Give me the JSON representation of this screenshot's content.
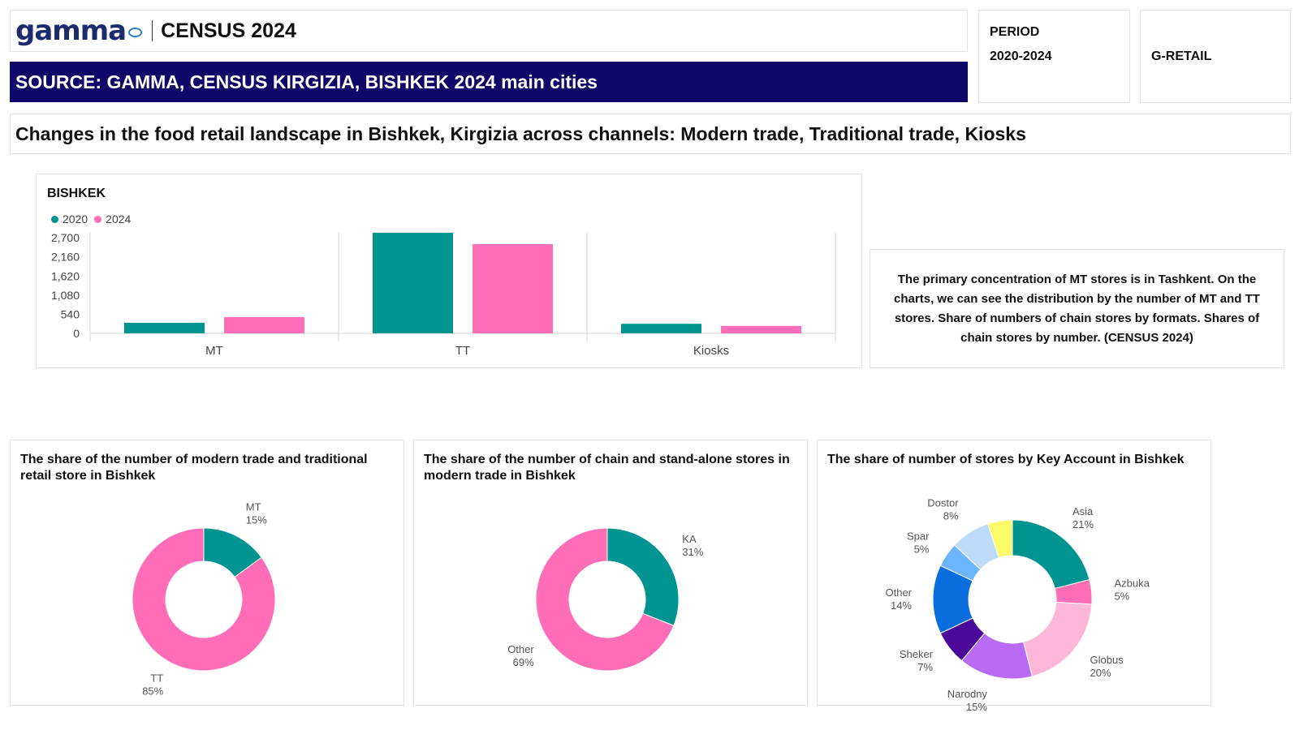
{
  "header": {
    "logo_text": "gamma",
    "title": "CENSUS 2024",
    "source": "SOURCE: GAMMA, CENSUS KIRGIZIA, BISHKEK 2024 main cities",
    "period_label": "PERIOD",
    "period_value": "2020-2024",
    "segment": "G-RETAIL"
  },
  "subtitle": "Changes in the food retail landscape in Bishkek, Kirgizia across channels: Modern trade, Traditional trade, Kiosks",
  "note": "The primary concentration of MT stores is in Tashkent. On the charts, we can see the distribution by the number of MT and TT stores. Share of numbers of chain stores by formats. Shares of chain stores by  number.  (CENSUS 2024)",
  "colors": {
    "teal": "#009490",
    "pink": "#ff6db6",
    "navy": "#0f0868"
  },
  "chart_data": [
    {
      "type": "bar",
      "title": "BISHKEK",
      "categories": [
        "MT",
        "TT",
        "Kiosks"
      ],
      "series": [
        {
          "name": "2020",
          "color": "#009490",
          "values": [
            300,
            2840,
            270
          ]
        },
        {
          "name": "2024",
          "color": "#ff6db6",
          "values": [
            460,
            2520,
            210
          ]
        }
      ],
      "yticks": [
        "0",
        "540",
        "1,080",
        "1,620",
        "2,160",
        "2,700"
      ],
      "ylim": [
        0,
        2840
      ],
      "legend": "top-left",
      "grid": false
    },
    {
      "type": "pie",
      "donut": true,
      "title": "The share of the number of modern trade and traditional retail store in Bishkek",
      "slices": [
        {
          "label": "MT",
          "value": 15,
          "pct": "15%",
          "color": "#009490"
        },
        {
          "label": "TT",
          "value": 85,
          "pct": "85%",
          "color": "#ff6db6"
        }
      ]
    },
    {
      "type": "pie",
      "donut": true,
      "title": "The share of the number of chain and stand-alone stores in modern trade in Bishkek",
      "slices": [
        {
          "label": "KA",
          "value": 31,
          "pct": "31%",
          "color": "#009490"
        },
        {
          "label": "Other",
          "value": 69,
          "pct": "69%",
          "color": "#ff6db6"
        }
      ]
    },
    {
      "type": "pie",
      "donut": true,
      "title": "The share of number of stores by Key Account in  Bishkek",
      "slices": [
        {
          "label": "Asia",
          "value": 21,
          "pct": "21%",
          "color": "#009490"
        },
        {
          "label": "Azbuka",
          "value": 5,
          "pct": "5%",
          "color": "#ff6db6"
        },
        {
          "label": "Globus",
          "value": 20,
          "pct": "20%",
          "color": "#ffb7d9"
        },
        {
          "label": "Narodny",
          "value": 15,
          "pct": "15%",
          "color": "#b86bf5"
        },
        {
          "label": "Sheker",
          "value": 7,
          "pct": "7%",
          "color": "#4a0899"
        },
        {
          "label": "Other",
          "value": 14,
          "pct": "14%",
          "color": "#0a6ede"
        },
        {
          "label": "Spar",
          "value": 5,
          "pct": "5%",
          "color": "#6cb4fb"
        },
        {
          "label": "Dostor",
          "value": 8,
          "pct": "8%",
          "color": "#bedcf9"
        },
        {
          "label": "",
          "value": 5,
          "pct": "",
          "color": "#fcfc6a"
        }
      ]
    }
  ]
}
